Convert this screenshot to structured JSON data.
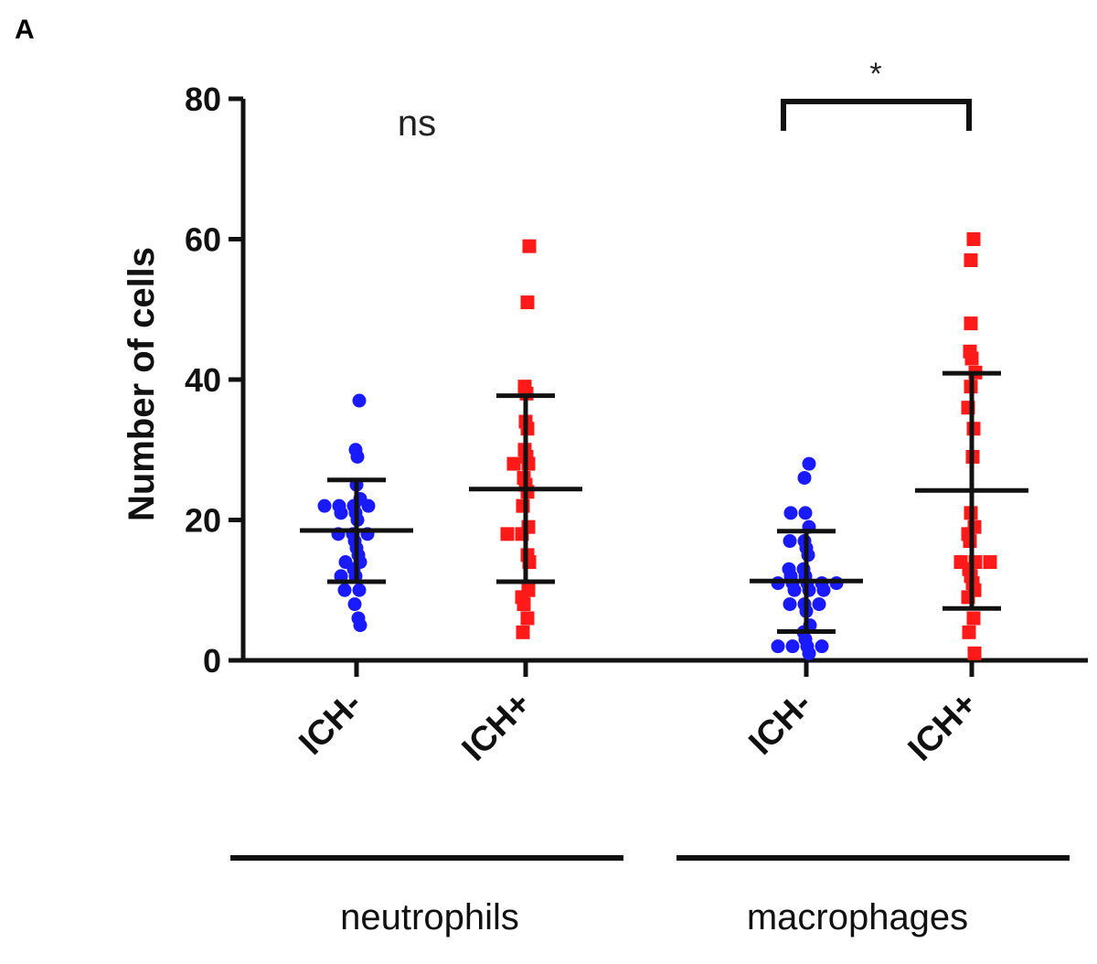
{
  "panel_label": "A",
  "chart_data": {
    "type": "scatter",
    "ylabel": "Number of cells",
    "ylim": [
      0,
      80
    ],
    "yticks": [
      0,
      20,
      40,
      60,
      80
    ],
    "grid": false,
    "categories": [
      "ICH-",
      "ICH+",
      "ICH-",
      "ICH+"
    ],
    "groups": [
      {
        "label": "neutrophils",
        "categories": [
          0,
          1
        ]
      },
      {
        "label": "macrophages",
        "categories": [
          2,
          3
        ]
      }
    ],
    "colors": {
      "ICH-": "#1a1aff",
      "ICH+": "#ff1a1a",
      "bars": "#111111"
    },
    "series": [
      {
        "category": 0,
        "group": "neutrophils",
        "marker": "circle",
        "values": [
          37,
          30,
          29,
          25,
          23,
          22,
          22,
          22,
          22,
          21,
          21,
          20,
          18,
          18,
          18,
          17,
          16,
          15,
          14,
          14,
          13,
          12,
          12,
          10,
          10,
          8,
          6,
          5
        ],
        "mean": 18.5,
        "sd_upper": 25.7,
        "sd_lower": 11.2
      },
      {
        "category": 1,
        "group": "neutrophils",
        "marker": "square",
        "values": [
          59,
          51,
          39,
          38,
          34,
          33,
          30,
          29,
          28,
          28,
          26,
          25,
          24,
          22,
          19,
          18,
          18,
          15,
          14,
          10,
          9,
          8,
          6,
          4
        ],
        "mean": 24.4,
        "sd_upper": 37.7,
        "sd_lower": 11.2
      },
      {
        "category": 2,
        "group": "macrophages",
        "marker": "circle",
        "values": [
          28,
          26,
          21,
          21,
          19,
          17,
          17,
          16,
          15,
          13,
          13,
          12,
          12,
          11,
          11,
          11,
          11,
          11,
          10,
          10,
          10,
          8,
          8,
          8,
          7,
          5,
          4,
          3,
          2,
          2,
          2,
          2,
          1
        ],
        "mean": 11.3,
        "sd_upper": 18.4,
        "sd_lower": 4.1
      },
      {
        "category": 3,
        "group": "macrophages",
        "marker": "square",
        "values": [
          60,
          57,
          48,
          44,
          43,
          41,
          39,
          36,
          33,
          29,
          21,
          19,
          18,
          17,
          14,
          14,
          14,
          13,
          12,
          11,
          10,
          9,
          6,
          4,
          1
        ],
        "mean": 24.2,
        "sd_upper": 40.9,
        "sd_lower": 7.4
      }
    ],
    "annotations": [
      {
        "text": "ns",
        "group": "neutrophils"
      },
      {
        "text": "*",
        "group": "macrophages",
        "bracket": [
          2,
          3
        ]
      }
    ]
  }
}
